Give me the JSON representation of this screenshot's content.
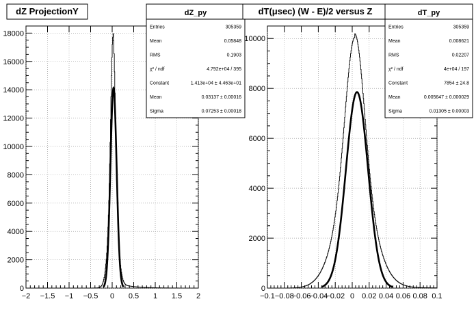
{
  "chart_data": [
    {
      "type": "histogram",
      "title": "dZ ProjectionY",
      "xlim": [
        -2,
        2
      ],
      "ylim": [
        0,
        18500
      ],
      "xticks": [
        -2,
        -1.5,
        -1,
        -0.5,
        0,
        0.5,
        1,
        1.5,
        2
      ],
      "xtick_labels": [
        "−2",
        "−1.5",
        "−1",
        "−0.5",
        "0",
        "0.5",
        "1",
        "1.5",
        "2"
      ],
      "yticks": [
        0,
        2000,
        4000,
        6000,
        8000,
        10000,
        12000,
        14000,
        16000,
        18000
      ],
      "grid": true,
      "histogram_shape": {
        "peak_x": 0.02,
        "peak_y": 17600,
        "width": 0.05,
        "tail_right": 0.35
      },
      "fit": {
        "mean": 0.03137,
        "sigma": 0.07253,
        "constant": 14130
      },
      "stats": {
        "name": "dZ_py",
        "rows": [
          {
            "label": "Entries",
            "value": "305359"
          },
          {
            "label": "Mean",
            "value": "0.05848"
          },
          {
            "label": "RMS",
            "value": "0.1903"
          },
          {
            "label": "χ² / ndf",
            "value": "4.792e+04 / 395"
          },
          {
            "label": "Constant",
            "value": "1.413e+04 ± 4.463e+01"
          },
          {
            "label": "Mean",
            "value": "0.03137 ± 0.00016"
          },
          {
            "label": "Sigma",
            "value": "0.07253 ± 0.00018"
          }
        ]
      }
    },
    {
      "type": "histogram",
      "title": "dT(μsec) (W - E)/2 versus Z",
      "xlim": [
        -0.1,
        0.1
      ],
      "ylim": [
        0,
        10500
      ],
      "xticks": [
        -0.1,
        -0.08,
        -0.06,
        -0.04,
        -0.02,
        0,
        0.02,
        0.04,
        0.06,
        0.08,
        0.1
      ],
      "xtick_labels": [
        "−0.1",
        "−0.08",
        "−0.06",
        "−0.04",
        "−0.02",
        "0",
        "0.02",
        "0.04",
        "0.06",
        "0.08",
        "0.1"
      ],
      "yticks": [
        0,
        2000,
        4000,
        6000,
        8000,
        10000
      ],
      "grid": true,
      "histogram_shape": {
        "peak_x": 0.003,
        "peak_y": 9950,
        "width": 0.011,
        "tail_right": 0.03
      },
      "fit": {
        "mean": 0.005647,
        "sigma": 0.01305,
        "constant": 7854
      },
      "stats": {
        "name": "dT_py",
        "rows": [
          {
            "label": "Entries",
            "value": "305359"
          },
          {
            "label": "Mean",
            "value": "0.008621"
          },
          {
            "label": "RMS",
            "value": "0.02207"
          },
          {
            "label": "χ² / ndf",
            "value": "4e+04 / 197"
          },
          {
            "label": "Constant",
            "value": "7854 ± 24.8"
          },
          {
            "label": "Mean",
            "value": "0.005647 ± 0.000029"
          },
          {
            "label": "Sigma",
            "value": "0.01305 ± 0.00003"
          }
        ]
      }
    }
  ]
}
